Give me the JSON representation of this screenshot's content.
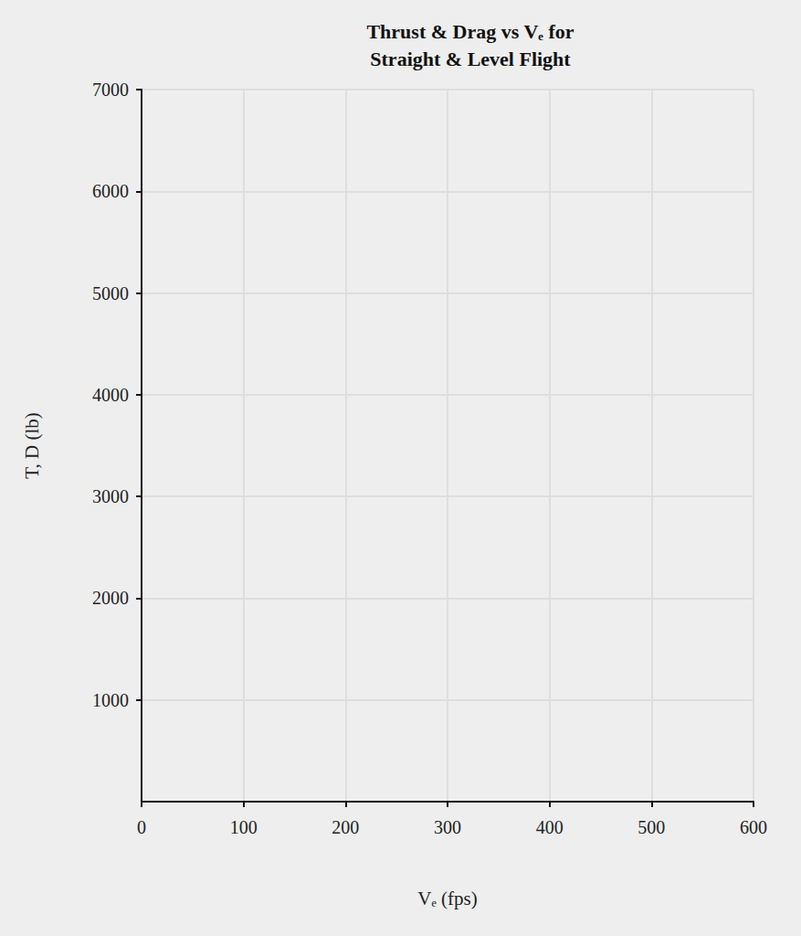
{
  "chart_data": {
    "type": "line",
    "title": "Thrust & Drag vs Vₑ for\nStraight & Level Flight",
    "x_label": "Vₑ (fps)",
    "y_label": "T, D (lb)",
    "series": [],
    "xlim": [
      0,
      600
    ],
    "xticks": [
      0,
      100,
      200,
      300,
      400,
      500,
      600
    ],
    "ylim": [
      0,
      7000
    ],
    "yticks": [
      1000,
      2000,
      3000,
      4000,
      5000,
      6000,
      7000
    ],
    "grid": true
  }
}
